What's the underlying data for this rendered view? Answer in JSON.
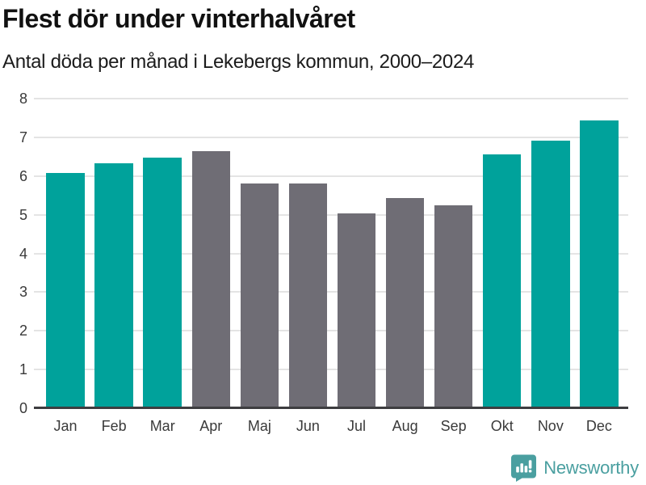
{
  "header": {
    "title": "Flest dör under vinterhalvåret",
    "subtitle": "Antal döda per månad i Lekebergs kommun, 2000–2024"
  },
  "chart_data": {
    "type": "bar",
    "title": "Flest dör under vinterhalvåret",
    "subtitle": "Antal döda per månad i Lekebergs kommun, 2000–2024",
    "categories": [
      "Jan",
      "Feb",
      "Mar",
      "Apr",
      "Maj",
      "Jun",
      "Jul",
      "Aug",
      "Sep",
      "Okt",
      "Nov",
      "Dec"
    ],
    "values": [
      6.08,
      6.32,
      6.48,
      6.64,
      5.8,
      5.8,
      5.04,
      5.44,
      5.24,
      6.56,
      6.92,
      7.44
    ],
    "bar_color_keys": [
      "winter",
      "winter",
      "winter",
      "summer",
      "summer",
      "summer",
      "summer",
      "summer",
      "summer",
      "winter",
      "winter",
      "winter"
    ],
    "bar_palette": {
      "winter": "#00a29b",
      "summer": "#6f6d75"
    },
    "xlabel": "",
    "ylabel": "",
    "ylim": [
      0,
      8
    ],
    "yticks": [
      0,
      1,
      2,
      3,
      4,
      5,
      6,
      7,
      8
    ],
    "grid": true,
    "legend_position": "none"
  },
  "footer": {
    "brand": "Newsworthy",
    "brand_color": "#4a9fa0",
    "icon": "newsworthy-logo-icon"
  }
}
